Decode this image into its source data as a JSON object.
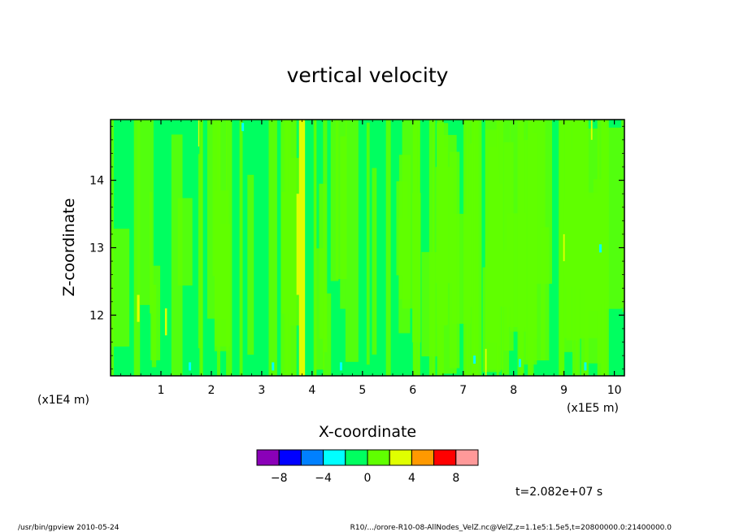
{
  "chart_data": {
    "type": "heatmap",
    "title": "vertical velocity",
    "xlabel": "X-coordinate",
    "ylabel": "Z-coordinate",
    "x_unit": "(x1E5 m)",
    "y_unit": "(x1E4 m)",
    "xlim": [
      0,
      10.2
    ],
    "ylim": [
      11.1,
      14.9
    ],
    "x_ticks": [
      "1",
      "2",
      "3",
      "4",
      "5",
      "6",
      "7",
      "8",
      "9",
      "10"
    ],
    "y_ticks": [
      "12",
      "13",
      "14"
    ],
    "time_label": "t=2.082e+07 s",
    "colorbar": {
      "colors": [
        "#8a00b8",
        "#0000ff",
        "#0080ff",
        "#00ffff",
        "#00ff60",
        "#60ff00",
        "#e0ff00",
        "#ff9900",
        "#ff0000",
        "#ff9999"
      ],
      "tick_labels": [
        "-8",
        "-4",
        "0",
        "4",
        "8"
      ]
    },
    "field_description": "mostly near-zero (0 to 2 band) with narrow streaks of 2 to 4 near x=3.8, 0.5, 7.5, 9.0",
    "dominant_band": "0 to 2"
  },
  "footer": {
    "left": "/usr/bin/gpview   2010-05-24",
    "right": "R10/.../orore-R10-08-AllNodes_VelZ.nc@VelZ,z=1.1e5:1.5e5,t=20800000.0:21400000.0"
  }
}
